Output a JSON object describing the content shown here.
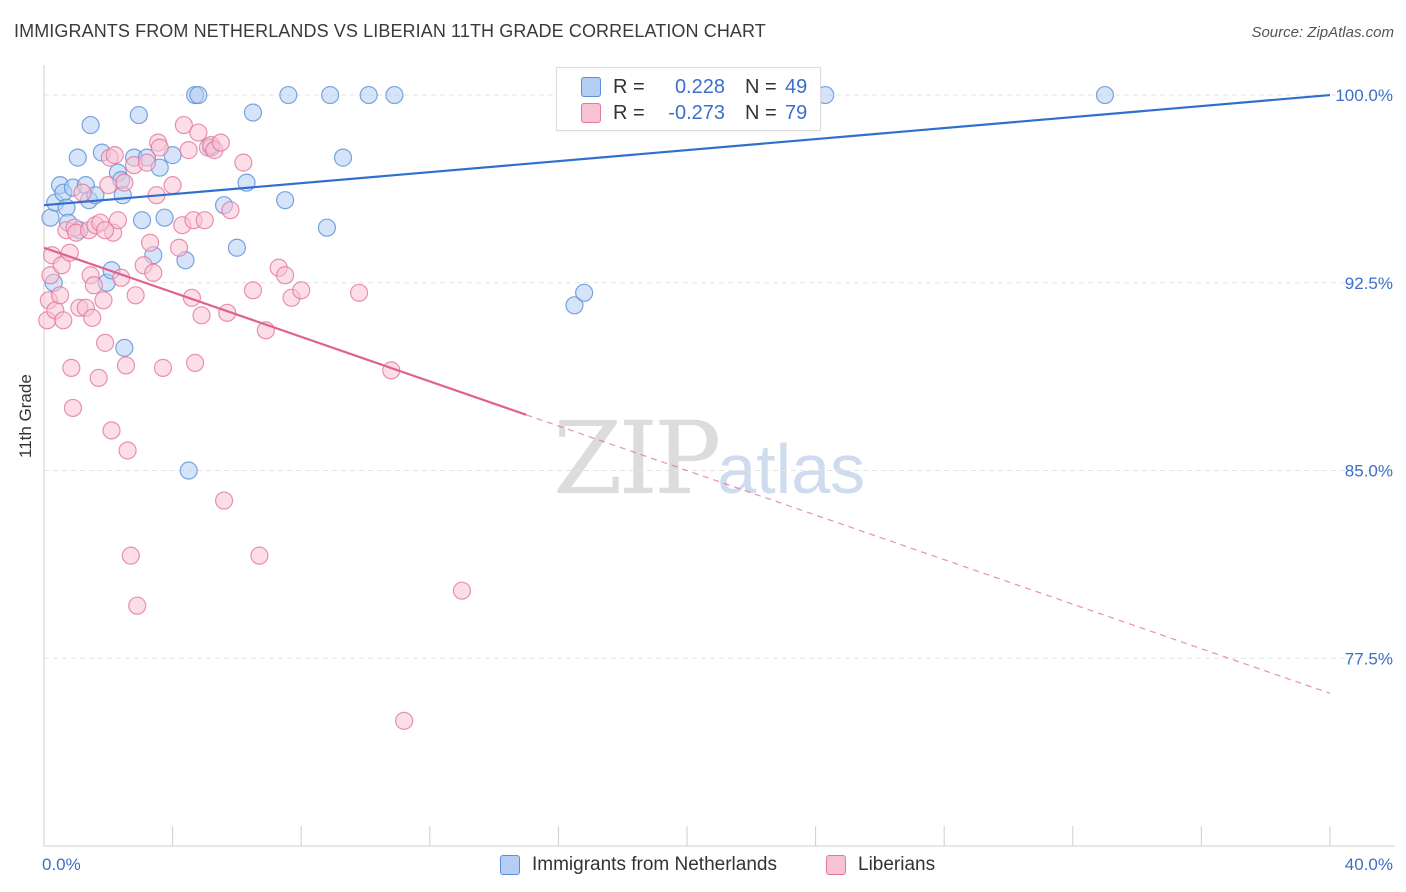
{
  "header": {
    "title": "IMMIGRANTS FROM NETHERLANDS VS LIBERIAN 11TH GRADE CORRELATION CHART",
    "source": "Source: ZipAtlas.com"
  },
  "legend_top": {
    "rows": [
      {
        "r_label": "R =",
        "r_value": "0.228",
        "n_label": "N =",
        "n_value": "49"
      },
      {
        "r_label": "R =",
        "r_value": "-0.273",
        "n_label": "N =",
        "n_value": "79"
      }
    ]
  },
  "legend_bottom": [
    "Immigrants from Netherlands",
    "Liberians"
  ],
  "watermark": {
    "zip": "ZIP",
    "atlas": "atlas"
  },
  "colors": {
    "blue_fill": "#b3cdf3",
    "blue_stroke": "#5b8fd8",
    "blue_line": "#2f6fce",
    "pink_fill": "#f7c3d4",
    "pink_stroke": "#e4789d",
    "pink_line": "#e0618f",
    "tick_label": "#3c6fc9",
    "grid": "#e3e3e3"
  },
  "chart_data": {
    "type": "scatter",
    "title": "IMMIGRANTS FROM NETHERLANDS VS LIBERIAN 11TH GRADE CORRELATION CHART",
    "xlabel": "",
    "ylabel": "11th Grade",
    "xlim": [
      0,
      40
    ],
    "ylim": [
      70,
      101.2
    ],
    "x_tick_labels": [
      "0.0%",
      "40.0%"
    ],
    "y_ticks": [
      77.5,
      85.0,
      92.5,
      100.0
    ],
    "y_tick_labels": [
      "77.5%",
      "85.0%",
      "92.5%",
      "100.0%"
    ],
    "grid": true,
    "legend": "top-center",
    "series": [
      {
        "name": "Immigrants from Netherlands",
        "r": 0.228,
        "n": 49,
        "trend": {
          "x0": 0.0,
          "y0": 95.6,
          "x1": 40.0,
          "y1": 100.0,
          "solid_until": 40.0
        },
        "points": [
          [
            0.2,
            95.1
          ],
          [
            0.3,
            92.5
          ],
          [
            0.35,
            95.7
          ],
          [
            0.5,
            96.4
          ],
          [
            0.6,
            96.1
          ],
          [
            0.7,
            95.5
          ],
          [
            0.75,
            94.9
          ],
          [
            0.9,
            96.3
          ],
          [
            1.05,
            97.5
          ],
          [
            1.1,
            94.6
          ],
          [
            1.3,
            96.4
          ],
          [
            1.4,
            95.8
          ],
          [
            1.45,
            98.8
          ],
          [
            1.6,
            96.0
          ],
          [
            1.8,
            97.7
          ],
          [
            1.95,
            92.5
          ],
          [
            2.1,
            93.0
          ],
          [
            2.3,
            96.9
          ],
          [
            2.4,
            96.6
          ],
          [
            2.45,
            96.0
          ],
          [
            2.5,
            89.9
          ],
          [
            2.8,
            97.5
          ],
          [
            2.95,
            99.2
          ],
          [
            3.05,
            95.0
          ],
          [
            3.2,
            97.5
          ],
          [
            3.4,
            93.6
          ],
          [
            3.6,
            97.1
          ],
          [
            3.75,
            95.1
          ],
          [
            4.0,
            97.6
          ],
          [
            4.4,
            93.4
          ],
          [
            4.5,
            85.0
          ],
          [
            4.7,
            100.0
          ],
          [
            4.8,
            100.0
          ],
          [
            5.2,
            97.9
          ],
          [
            5.6,
            95.6
          ],
          [
            6.0,
            93.9
          ],
          [
            6.3,
            96.5
          ],
          [
            6.5,
            99.3
          ],
          [
            7.5,
            95.8
          ],
          [
            7.6,
            100.0
          ],
          [
            8.8,
            94.7
          ],
          [
            8.9,
            100.0
          ],
          [
            9.3,
            97.5
          ],
          [
            10.1,
            100.0
          ],
          [
            10.9,
            100.0
          ],
          [
            16.5,
            91.6
          ],
          [
            16.8,
            92.1
          ],
          [
            24.3,
            100.0
          ],
          [
            33.0,
            100.0
          ]
        ]
      },
      {
        "name": "Liberians",
        "r": -0.273,
        "n": 79,
        "trend": {
          "x0": 0.0,
          "y0": 93.9,
          "x1": 40.0,
          "y1": 76.1,
          "solid_until": 15.0
        },
        "points": [
          [
            0.1,
            91.0
          ],
          [
            0.15,
            91.8
          ],
          [
            0.2,
            92.8
          ],
          [
            0.25,
            93.6
          ],
          [
            0.35,
            91.4
          ],
          [
            0.5,
            92.0
          ],
          [
            0.55,
            93.2
          ],
          [
            0.6,
            91.0
          ],
          [
            0.7,
            94.6
          ],
          [
            0.8,
            93.7
          ],
          [
            0.85,
            89.1
          ],
          [
            0.9,
            87.5
          ],
          [
            0.95,
            94.7
          ],
          [
            1.0,
            94.5
          ],
          [
            1.1,
            91.5
          ],
          [
            1.2,
            96.1
          ],
          [
            1.3,
            91.5
          ],
          [
            1.4,
            94.6
          ],
          [
            1.45,
            92.8
          ],
          [
            1.5,
            91.1
          ],
          [
            1.55,
            92.4
          ],
          [
            1.6,
            94.8
          ],
          [
            1.7,
            88.7
          ],
          [
            1.75,
            94.9
          ],
          [
            1.85,
            91.8
          ],
          [
            1.9,
            90.1
          ],
          [
            2.0,
            96.4
          ],
          [
            2.05,
            97.5
          ],
          [
            2.1,
            86.6
          ],
          [
            2.15,
            94.5
          ],
          [
            2.2,
            97.6
          ],
          [
            2.3,
            95.0
          ],
          [
            2.4,
            92.7
          ],
          [
            2.5,
            96.5
          ],
          [
            2.55,
            89.2
          ],
          [
            2.6,
            85.8
          ],
          [
            2.7,
            81.6
          ],
          [
            2.8,
            97.2
          ],
          [
            2.85,
            92.0
          ],
          [
            2.9,
            79.6
          ],
          [
            3.1,
            93.2
          ],
          [
            3.2,
            97.3
          ],
          [
            3.3,
            94.1
          ],
          [
            3.4,
            92.9
          ],
          [
            3.5,
            96.0
          ],
          [
            3.55,
            98.1
          ],
          [
            3.7,
            89.1
          ],
          [
            4.0,
            96.4
          ],
          [
            4.2,
            93.9
          ],
          [
            4.3,
            94.8
          ],
          [
            4.35,
            98.8
          ],
          [
            4.5,
            97.8
          ],
          [
            4.6,
            91.9
          ],
          [
            4.65,
            95.0
          ],
          [
            4.7,
            89.3
          ],
          [
            4.8,
            98.5
          ],
          [
            4.9,
            91.2
          ],
          [
            5.0,
            95.0
          ],
          [
            5.1,
            97.9
          ],
          [
            5.2,
            98.0
          ],
          [
            5.3,
            97.8
          ],
          [
            5.5,
            98.1
          ],
          [
            5.6,
            83.8
          ],
          [
            5.7,
            91.3
          ],
          [
            5.8,
            95.4
          ],
          [
            6.2,
            97.3
          ],
          [
            6.5,
            92.2
          ],
          [
            6.7,
            81.6
          ],
          [
            6.9,
            90.6
          ],
          [
            7.3,
            93.1
          ],
          [
            7.5,
            92.8
          ],
          [
            7.7,
            91.9
          ],
          [
            8.0,
            92.2
          ],
          [
            9.8,
            92.1
          ],
          [
            10.8,
            89.0
          ],
          [
            11.2,
            75.0
          ],
          [
            13.0,
            80.2
          ],
          [
            1.9,
            94.6
          ],
          [
            3.6,
            97.9
          ]
        ]
      }
    ]
  }
}
